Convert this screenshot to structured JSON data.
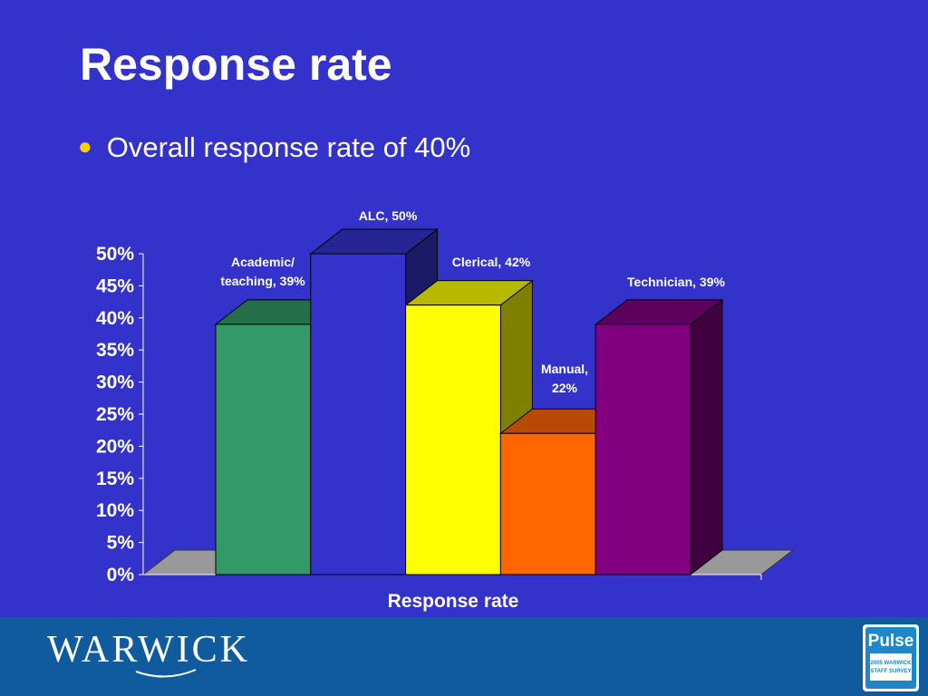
{
  "title": "Response rate",
  "bullet": "Overall response rate of 40%",
  "footer": {
    "logo_text": "WARWICK",
    "badge_title": "Pulse",
    "badge_line1": "2005 WARWICK",
    "badge_line2": "STAFF SURVEY"
  },
  "chart_data": {
    "type": "bar",
    "categories": [
      "Academic/ teaching",
      "ALC",
      "Clerical",
      "Manual",
      "Technician"
    ],
    "values": [
      39,
      50,
      42,
      22,
      39
    ],
    "data_labels": [
      [
        "Academic/",
        "teaching, 39%"
      ],
      [
        "ALC, 50%"
      ],
      [
        "Clerical, 42%"
      ],
      [
        "Manual,",
        "22%"
      ],
      [
        "Technician, 39%"
      ]
    ],
    "colors": [
      "#339966",
      "#3333cc",
      "#ffff00",
      "#ff6600",
      "#800080"
    ],
    "xlabel": "Response rate",
    "ylim": [
      0,
      50
    ],
    "y_ticks": [
      "0%",
      "5%",
      "10%",
      "15%",
      "20%",
      "25%",
      "30%",
      "35%",
      "40%",
      "45%",
      "50%"
    ],
    "style": "3d-clustered",
    "grid": false,
    "legend": "none"
  }
}
